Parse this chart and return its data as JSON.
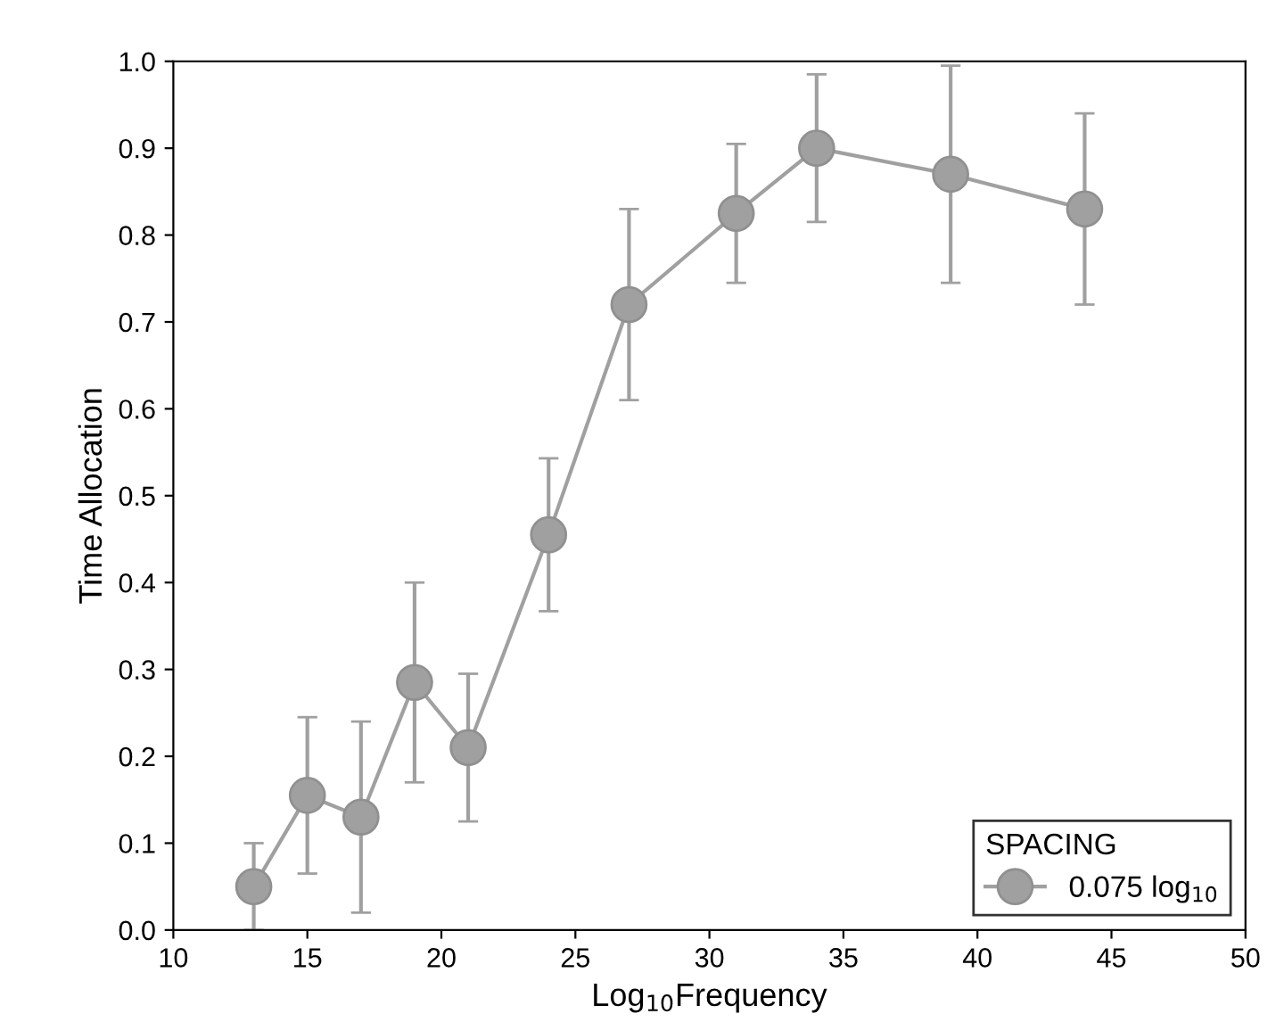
{
  "chart_data": {
    "type": "line",
    "xlabel": "Log$_{10}$Frequency",
    "ylabel": "Time Allocation",
    "legend_title": "SPACING",
    "x": [
      13,
      15,
      17,
      19,
      21,
      24,
      27,
      31,
      34,
      39,
      44
    ],
    "series": [
      {
        "name": "0.075 log$_{10}$",
        "color": "#a0a0a0",
        "values": [
          0.05,
          0.155,
          0.13,
          0.285,
          0.21,
          0.455,
          0.72,
          0.825,
          0.9,
          0.87,
          0.83
        ],
        "errors": [
          0.05,
          0.09,
          0.11,
          0.115,
          0.085,
          0.088,
          0.11,
          0.08,
          0.085,
          0.125,
          0.11
        ]
      }
    ],
    "xlim": [
      10,
      50
    ],
    "xticks": [
      10,
      15,
      20,
      25,
      30,
      35,
      40,
      45,
      50
    ],
    "ylim": [
      0,
      1.0
    ],
    "yticks": [
      {
        "value": 0,
        "label": "0.0"
      },
      0.1,
      0.2,
      0.3,
      0.4,
      0.5,
      0.6,
      0.7,
      0.8,
      0.9,
      {
        "value": 1.0,
        "label": "1.0"
      }
    ],
    "marker": "circle",
    "line_style": "solid",
    "grid": false,
    "legend": "bottom right"
  }
}
